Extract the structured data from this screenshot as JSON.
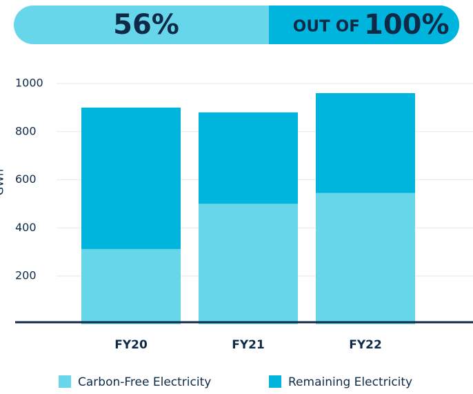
{
  "banner": {
    "value": "56%",
    "label": "OUT OF",
    "total": "100%"
  },
  "chart_data": {
    "type": "stacked-bar",
    "y_label": "GWh",
    "categories": [
      "FY20",
      "FY21",
      "FY22"
    ],
    "series": [
      {
        "name": "Carbon-Free Electricity",
        "color": "#67d6ea",
        "values": [
          312,
          500,
          545
        ]
      },
      {
        "name": "Remaining Electricity",
        "color": "#00b5dd",
        "values": [
          588,
          380,
          415
        ]
      }
    ],
    "ylim": [
      0,
      1000
    ],
    "yticks": [
      200,
      400,
      600,
      800,
      1000
    ],
    "grid": true,
    "legend": "bottom"
  }
}
